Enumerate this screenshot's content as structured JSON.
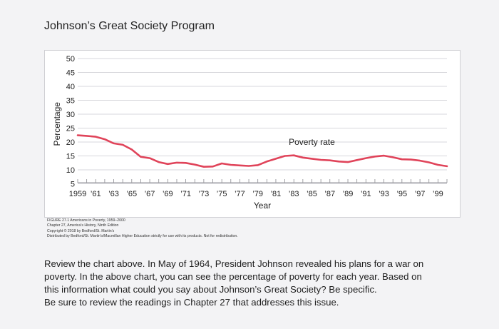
{
  "page": {
    "title": "Johnson’s Great Society Program"
  },
  "chart_data": {
    "type": "line",
    "title": "",
    "xlabel": "Year",
    "ylabel": "Percentage",
    "ylim": [
      0,
      50
    ],
    "yticks": [
      5,
      10,
      15,
      20,
      25,
      30,
      35,
      40,
      45,
      50
    ],
    "xlim": [
      1959,
      2000
    ],
    "xtick_labels": [
      "1959",
      "’61",
      "’63",
      "’65",
      "’67",
      "’69",
      "’71",
      "’73",
      "’75",
      "’77",
      "’79",
      "’81",
      "’83",
      "’85",
      "’87",
      "’89",
      "’91",
      "’93",
      "’95",
      "’97",
      "’99"
    ],
    "xtick_values": [
      1959,
      1961,
      1963,
      1965,
      1967,
      1969,
      1971,
      1973,
      1975,
      1977,
      1979,
      1981,
      1983,
      1985,
      1987,
      1989,
      1991,
      1993,
      1995,
      1997,
      1999
    ],
    "grid": true,
    "series": [
      {
        "name": "Poverty rate",
        "color": "#e0445a",
        "x": [
          1959,
          1960,
          1961,
          1962,
          1963,
          1964,
          1965,
          1966,
          1967,
          1968,
          1969,
          1970,
          1971,
          1972,
          1973,
          1974,
          1975,
          1976,
          1977,
          1978,
          1979,
          1980,
          1981,
          1982,
          1983,
          1984,
          1985,
          1986,
          1987,
          1988,
          1989,
          1990,
          1991,
          1992,
          1993,
          1994,
          1995,
          1996,
          1997,
          1998,
          1999,
          2000
        ],
        "values": [
          22.4,
          22.2,
          21.9,
          21.0,
          19.5,
          19.0,
          17.3,
          14.7,
          14.2,
          12.8,
          12.1,
          12.6,
          12.5,
          11.9,
          11.1,
          11.2,
          12.3,
          11.8,
          11.6,
          11.4,
          11.7,
          13.0,
          14.0,
          15.0,
          15.2,
          14.4,
          14.0,
          13.6,
          13.4,
          13.0,
          12.8,
          13.5,
          14.2,
          14.8,
          15.1,
          14.5,
          13.8,
          13.7,
          13.3,
          12.7,
          11.8,
          11.3
        ]
      }
    ],
    "annotations": [
      {
        "text": "Poverty rate",
        "x": 1985,
        "y": 19
      }
    ]
  },
  "caption": {
    "line1": "FIGURE 27.1 Americans in Poverty, 1959–2000",
    "line2": "Chapter 27, America’s History, Ninth Edition",
    "line3": "Copyright © 2018 by Bedford/St. Martin’s",
    "line4": "Distributed by Bedford/St. Martin’s/Macmillan Higher Education strictly for use with its products. Not for redistribution."
  },
  "question": {
    "line1": "Review the chart above.  In May of 1964, President Johnson revealed his plans for a war on",
    "line2": "poverty.  In the above chart, you can see the percentage of poverty for each year.  Based on",
    "line3": "this information what could you say about Johnson’s Great Society?  Be specific.",
    "line4": "Be sure to review the readings in Chapter 27 that addresses this issue."
  }
}
